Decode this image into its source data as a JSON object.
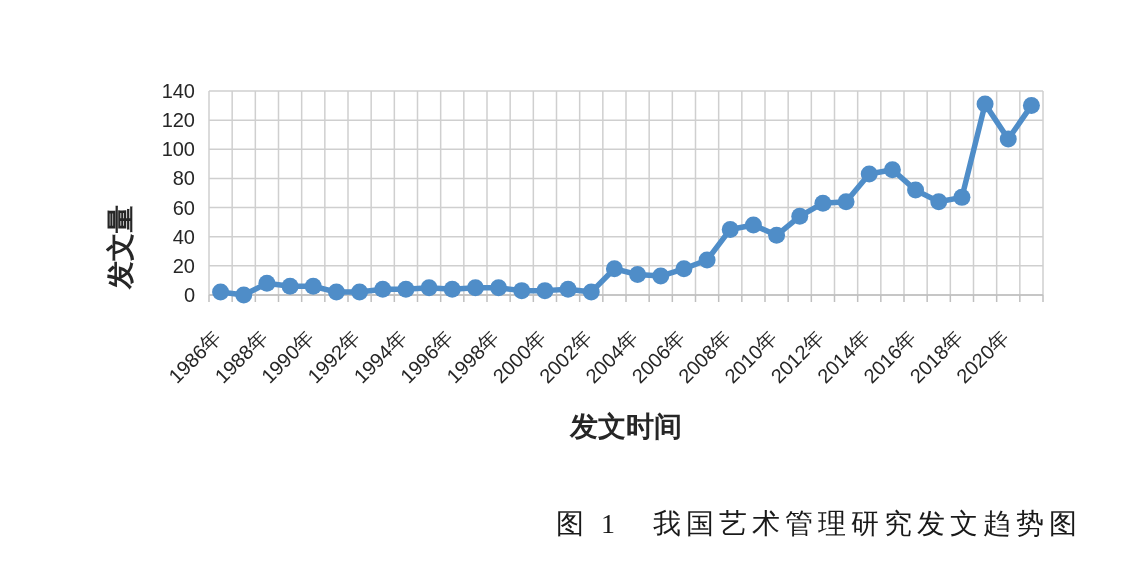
{
  "chart_data": {
    "type": "line",
    "xlabel": "发文时间",
    "ylabel": "发文量",
    "categories": [
      "1986年",
      null,
      "1988年",
      null,
      "1990年",
      null,
      "1992年",
      null,
      "1994年",
      null,
      "1996年",
      null,
      "1998年",
      null,
      "2000年",
      null,
      "2002年",
      null,
      "2004年",
      null,
      "2006年",
      null,
      "2008年",
      null,
      "2010年",
      null,
      "2012年",
      null,
      "2014年",
      null,
      "2016年",
      null,
      "2018年",
      null,
      "2020年",
      null
    ],
    "values": [
      2,
      0,
      8,
      6,
      6,
      2,
      2,
      4,
      4,
      5,
      4,
      5,
      5,
      3,
      3,
      4,
      2,
      18,
      14,
      13,
      18,
      24,
      45,
      48,
      41,
      54,
      63,
      64,
      83,
      86,
      72,
      64,
      67,
      131,
      107,
      130
    ],
    "color": "#4f8dc8",
    "ylim": [
      0,
      140
    ],
    "yticks": [
      0,
      20,
      40,
      60,
      80,
      100,
      120,
      140
    ],
    "grid": true,
    "marker": "circle",
    "annotations": [
      "图 1　我国艺术管理研究发文趋势图"
    ]
  }
}
